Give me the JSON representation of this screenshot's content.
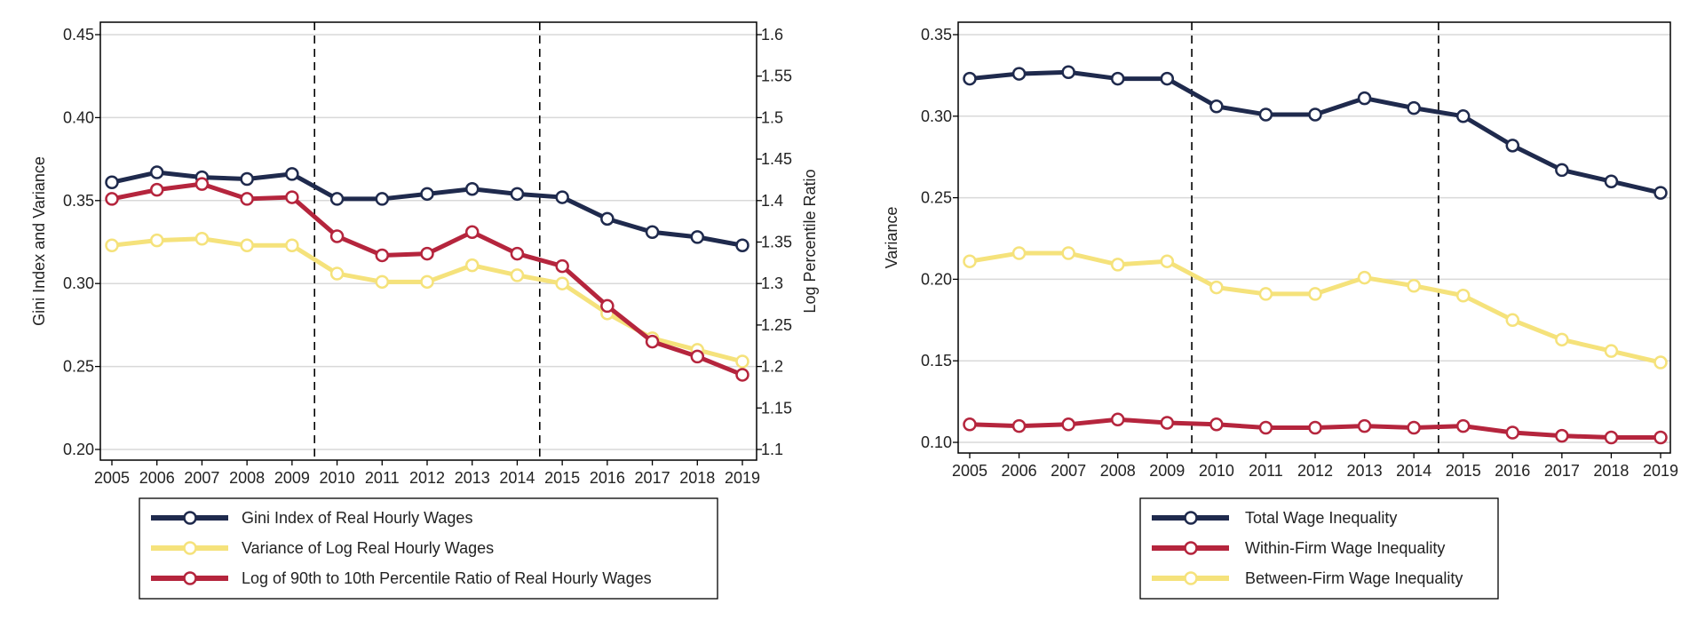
{
  "chart_data": [
    {
      "type": "line",
      "title": "",
      "xlabel": "",
      "ylabel": "Gini Index and Variance",
      "y2label": "Log Percentile Ratio",
      "ylim": [
        0.2,
        0.45
      ],
      "y2lim": [
        1.1,
        1.6
      ],
      "x_ticks": [
        "2005",
        "2006",
        "2007",
        "2008",
        "2009",
        "2010",
        "2011",
        "2012",
        "2013",
        "2014",
        "2015",
        "2016",
        "2017",
        "2018",
        "2019"
      ],
      "y_ticks": [
        "0.20",
        "0.25",
        "0.30",
        "0.35",
        "0.40",
        "0.45"
      ],
      "y2_ticks": [
        "1.1",
        "1.15",
        "1.2",
        "1.25",
        "1.3",
        "1.35",
        "1.4",
        "1.45",
        "1.5",
        "1.55",
        "1.6"
      ],
      "y2_tick_values": [
        1.1,
        1.15,
        1.2,
        1.25,
        1.3,
        1.35,
        1.4,
        1.45,
        1.5,
        1.55,
        1.6
      ],
      "vlines": [
        2009.5,
        2014.5
      ],
      "grid": "horizontal",
      "legend_position": "bottom",
      "x": [
        2005,
        2006,
        2007,
        2008,
        2009,
        2010,
        2011,
        2012,
        2013,
        2014,
        2015,
        2016,
        2017,
        2018,
        2019
      ],
      "series": [
        {
          "name": "Gini Index of Real Hourly Wages",
          "color": "#1f2a4d",
          "axis": "left",
          "values": [
            0.361,
            0.367,
            0.364,
            0.363,
            0.366,
            0.351,
            0.351,
            0.354,
            0.357,
            0.354,
            0.352,
            0.339,
            0.331,
            0.328,
            0.323
          ]
        },
        {
          "name": "Variance of Log Real Hourly Wages",
          "color": "#f5e27b",
          "axis": "left",
          "values": [
            0.323,
            0.326,
            0.327,
            0.323,
            0.323,
            0.306,
            0.301,
            0.301,
            0.311,
            0.305,
            0.3,
            0.282,
            0.267,
            0.26,
            0.253
          ]
        },
        {
          "name": "Log of 90th to 10th Percentile Ratio of Real Hourly Wages",
          "color": "#b5253d",
          "axis": "right",
          "values": [
            1.402,
            1.413,
            1.42,
            1.402,
            1.404,
            1.357,
            1.334,
            1.336,
            1.362,
            1.336,
            1.321,
            1.273,
            1.23,
            1.212,
            1.19
          ]
        }
      ]
    },
    {
      "type": "line",
      "title": "",
      "xlabel": "",
      "ylabel": "Variance",
      "ylim": [
        0.1,
        0.35
      ],
      "x_ticks": [
        "2005",
        "2006",
        "2007",
        "2008",
        "2009",
        "2010",
        "2011",
        "2012",
        "2013",
        "2014",
        "2015",
        "2016",
        "2017",
        "2018",
        "2019"
      ],
      "y_ticks": [
        "0.10",
        "0.15",
        "0.20",
        "0.25",
        "0.30",
        "0.35"
      ],
      "vlines": [
        2009.5,
        2014.5
      ],
      "grid": "horizontal",
      "legend_position": "bottom",
      "x": [
        2005,
        2006,
        2007,
        2008,
        2009,
        2010,
        2011,
        2012,
        2013,
        2014,
        2015,
        2016,
        2017,
        2018,
        2019
      ],
      "series": [
        {
          "name": "Total Wage Inequality",
          "color": "#1f2a4d",
          "values": [
            0.323,
            0.326,
            0.327,
            0.323,
            0.323,
            0.306,
            0.301,
            0.301,
            0.311,
            0.305,
            0.3,
            0.282,
            0.267,
            0.26,
            0.253
          ]
        },
        {
          "name": "Within-Firm Wage Inequality",
          "color": "#b5253d",
          "values": [
            0.111,
            0.11,
            0.111,
            0.114,
            0.112,
            0.111,
            0.109,
            0.109,
            0.11,
            0.109,
            0.11,
            0.106,
            0.104,
            0.103,
            0.103
          ]
        },
        {
          "name": "Between-Firm Wage Inequality",
          "color": "#f5e27b",
          "values": [
            0.211,
            0.216,
            0.216,
            0.209,
            0.211,
            0.195,
            0.191,
            0.191,
            0.201,
            0.196,
            0.19,
            0.175,
            0.163,
            0.156,
            0.149
          ]
        }
      ]
    }
  ]
}
